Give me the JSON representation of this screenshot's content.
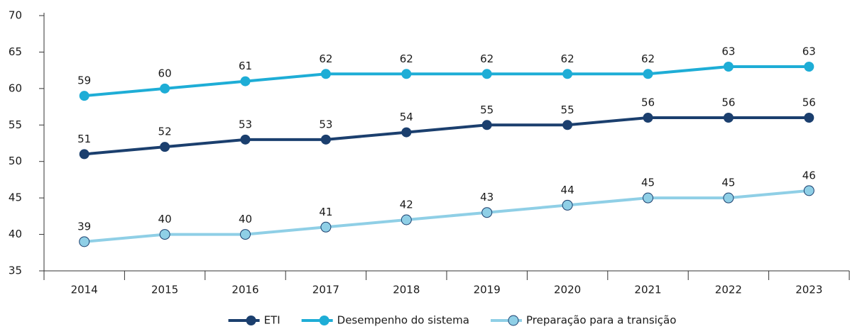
{
  "chart_data": {
    "type": "line",
    "categories": [
      "2014",
      "2015",
      "2016",
      "2017",
      "2018",
      "2019",
      "2020",
      "2021",
      "2022",
      "2023"
    ],
    "series": [
      {
        "name": "ETI",
        "color": "#1b3f6e",
        "values": [
          51,
          52,
          53,
          53,
          54,
          55,
          55,
          56,
          56,
          56
        ]
      },
      {
        "name": "Desempenho do sistema",
        "color": "#1eadd6",
        "values": [
          59,
          60,
          61,
          62,
          62,
          62,
          62,
          62,
          63,
          63
        ]
      },
      {
        "name": "Preparação para a transição",
        "color": "#8fcfe6",
        "values": [
          39,
          40,
          40,
          41,
          42,
          43,
          44,
          45,
          45,
          46
        ]
      }
    ],
    "ylim": [
      35,
      70
    ],
    "yticks": [
      35,
      40,
      45,
      50,
      55,
      60,
      65,
      70
    ],
    "grid": false,
    "legend": "bottom"
  }
}
